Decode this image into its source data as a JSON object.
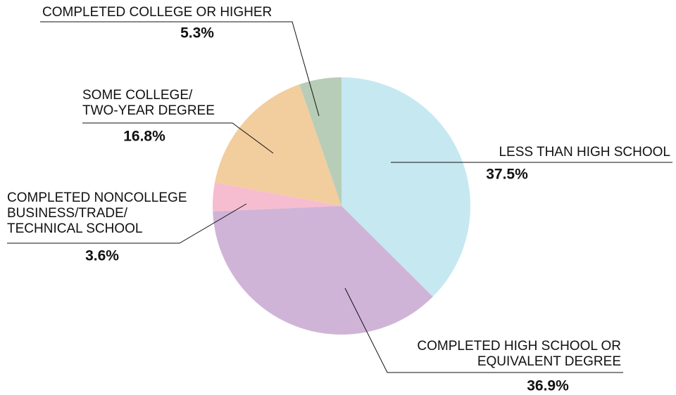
{
  "chart_data": {
    "type": "pie",
    "categories": [
      "LESS THAN HIGH SCHOOL",
      "COMPLETED HIGH SCHOOL OR\nEQUIVALENT DEGREE",
      "COMPLETED NONCOLLEGE\nBUSINESS/TRADE/\nTECHNICAL SCHOOL",
      "SOME COLLEGE/\nTWO-YEAR DEGREE",
      "COMPLETED COLLEGE OR HIGHER"
    ],
    "values": [
      37.5,
      36.9,
      3.6,
      16.8,
      5.3
    ],
    "value_labels": [
      "37.5%",
      "36.9%",
      "3.6%",
      "16.8%",
      "5.3%"
    ],
    "colors": [
      "#c6e8f1",
      "#cfb4d8",
      "#f6bdd0",
      "#f2cd9e",
      "#b8cdb7"
    ]
  }
}
